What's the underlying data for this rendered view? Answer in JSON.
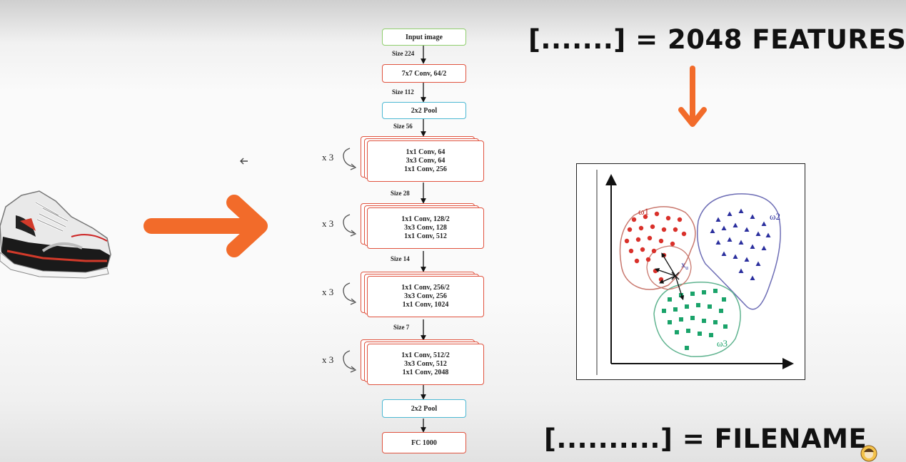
{
  "network": {
    "input_label": "Input image",
    "conv1_label": "7x7 Conv, 64/2",
    "pool1_label": "2x2 Pool",
    "pool2_label": "2x2 Pool",
    "fc_label": "FC 1000",
    "sizes": [
      "Size 224",
      "Size 112",
      "Size 56",
      "Size 28",
      "Size 14",
      "Size 7"
    ],
    "repeat_label": "x 3",
    "blocks": [
      {
        "lines": [
          "1x1 Conv, 64",
          "3x3 Conv, 64",
          "1x1 Conv, 256"
        ]
      },
      {
        "lines": [
          "1x1 Conv, 128/2",
          "3x3 Conv, 128",
          "1x1 Conv, 512"
        ]
      },
      {
        "lines": [
          "1x1 Conv, 256/2",
          "3x3 Conv, 256",
          "1x1 Conv, 1024"
        ]
      },
      {
        "lines": [
          "1x1 Conv, 512/2",
          "3x3 Conv, 512",
          "1x1 Conv, 2048"
        ]
      }
    ]
  },
  "headlines": {
    "features": "[.......] = 2048 FEATURES",
    "filename": "[..........] = FILENAME"
  },
  "cluster_plot": {
    "class_labels": [
      "ω1",
      "ω2",
      "ω3"
    ],
    "query_label": "xu",
    "query_main": "x",
    "query_sub": "u",
    "class_colors": {
      "c1": "#d9302a",
      "c2": "#2b2f9e",
      "c3": "#1aa36a"
    },
    "outline_colors": {
      "c1": "#c9786e",
      "c2": "#6d6db5",
      "c3": "#5fb38f"
    }
  },
  "colors": {
    "accent_orange": "#f26b2a",
    "layer_border": "#e0533f",
    "input_border": "#8fce6d",
    "pool_border": "#4cb8d3"
  },
  "icons": [
    "shoe-image",
    "arrow-right-icon",
    "arrow-down-icon",
    "cursor-back-icon",
    "repeat-arrow-icon",
    "avatar-icon"
  ]
}
